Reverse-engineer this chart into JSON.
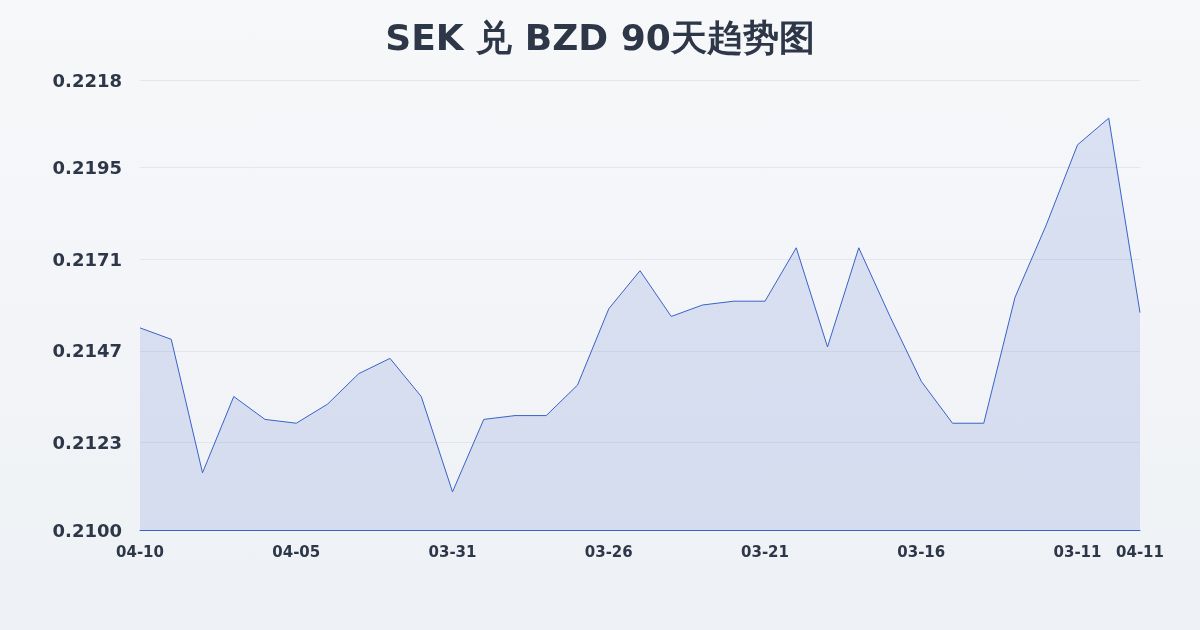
{
  "chart_data": {
    "type": "area",
    "title": "SEK 兑 BZD 90天趋势图",
    "categories": [
      "04-10",
      null,
      null,
      null,
      null,
      "04-05",
      null,
      null,
      null,
      null,
      "03-31",
      null,
      null,
      null,
      null,
      "03-26",
      null,
      null,
      null,
      null,
      "03-21",
      null,
      null,
      null,
      null,
      "03-16",
      null,
      null,
      null,
      null,
      "03-11",
      null,
      "04-11"
    ],
    "series": [
      {
        "color": "#3a62c9",
        "values": [
          0.2153,
          0.215,
          0.2115,
          0.2135,
          0.2129,
          0.2128,
          0.2133,
          0.2141,
          0.2145,
          0.2135,
          0.211,
          0.2129,
          0.213,
          0.213,
          0.2138,
          0.2158,
          0.2168,
          0.2156,
          0.2159,
          0.216,
          0.216,
          0.2174,
          0.2148,
          0.2174,
          0.2156,
          0.2139,
          0.2128,
          0.2128,
          0.2161,
          0.218,
          0.2201,
          0.2208,
          0.2157
        ]
      }
    ],
    "ylim": [
      0.21,
      0.2218
    ],
    "yticks": [
      {
        "value": 0.21,
        "label": "0.2100"
      },
      0.2123,
      0.2147,
      0.2171,
      0.2195,
      {
        "value": 0.2218,
        "label": "0.2218"
      }
    ],
    "grid": "y",
    "marker": "none",
    "line_style": "solid"
  }
}
